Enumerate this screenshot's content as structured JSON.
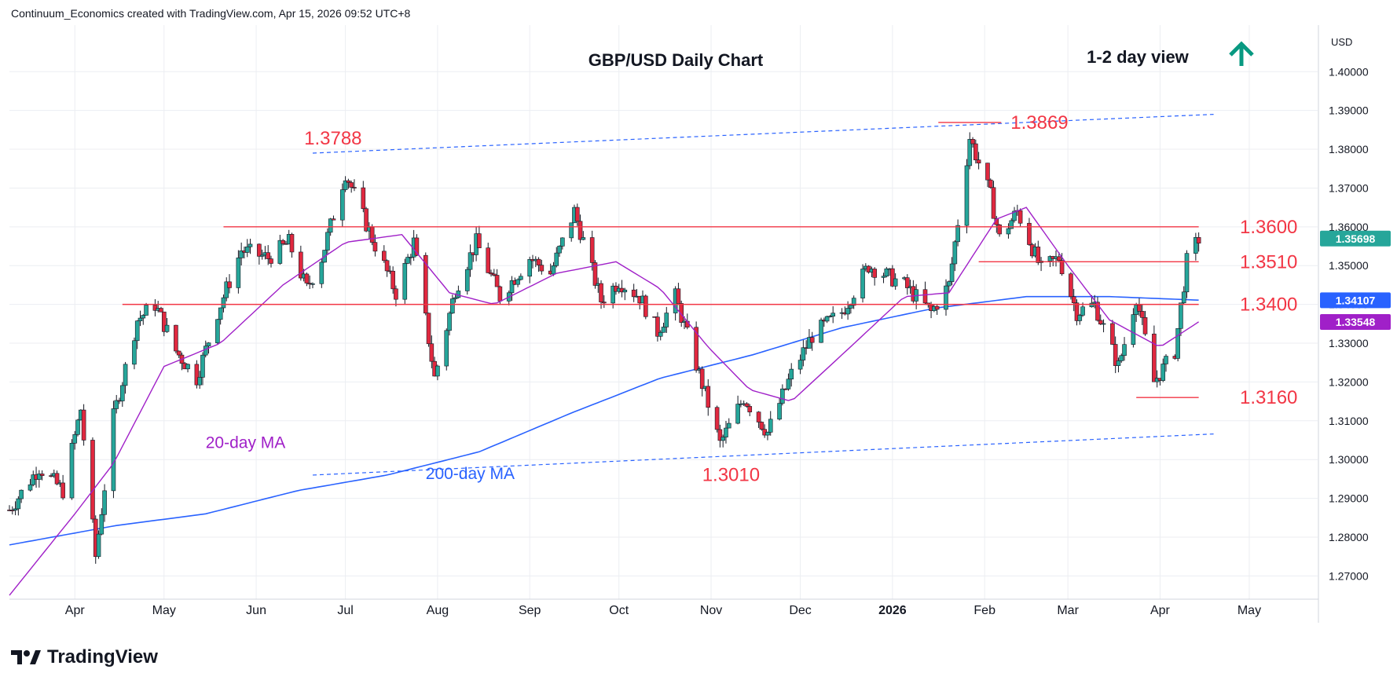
{
  "header": {
    "credit": "Continuum_Economics created with TradingView.com, Apr 15, 2026 09:52 UTC+8"
  },
  "footer": {
    "brand": "TradingView"
  },
  "colors": {
    "up": "#26a69a",
    "down": "#e0283f",
    "ma20": "#a020c8",
    "ma200": "#2962ff",
    "level": "#f23645",
    "trend": "#2962ff",
    "arrow": "#089981",
    "grid": "#eceef2"
  },
  "chart_data": {
    "type": "candlestick",
    "title": "GBP/USD Daily Chart",
    "view_label": "1-2 day view",
    "view_icon": "arrow-up-icon",
    "currency": "USD",
    "ylim": [
      1.264,
      1.412
    ],
    "y_ticks": [
      "1.40000",
      "1.39000",
      "1.38000",
      "1.37000",
      "1.36000",
      "1.35000",
      "1.34000",
      "1.33000",
      "1.32000",
      "1.31000",
      "1.30000",
      "1.29000",
      "1.28000",
      "1.27000"
    ],
    "x_ticks": [
      {
        "label": "Apr",
        "date": "2025-04-01"
      },
      {
        "label": "May",
        "date": "2025-05-01"
      },
      {
        "label": "Jun",
        "date": "2025-06-01"
      },
      {
        "label": "Jul",
        "date": "2025-07-01"
      },
      {
        "label": "Aug",
        "date": "2025-08-01"
      },
      {
        "label": "Sep",
        "date": "2025-09-01"
      },
      {
        "label": "Oct",
        "date": "2025-10-01"
      },
      {
        "label": "Nov",
        "date": "2025-11-01"
      },
      {
        "label": "Dec",
        "date": "2025-12-01"
      },
      {
        "label": "2026",
        "date": "2026-01-01"
      },
      {
        "label": "Feb",
        "date": "2026-02-01"
      },
      {
        "label": "Mar",
        "date": "2026-03-01"
      },
      {
        "label": "Apr",
        "date": "2026-04-01"
      },
      {
        "label": "May",
        "date": "2026-05-01"
      }
    ],
    "price_tags": [
      {
        "value": 1.35698,
        "label": "1.35698",
        "color": "#26a69a"
      },
      {
        "value": 1.34107,
        "label": "1.34107",
        "color": "#2962ff"
      },
      {
        "value": 1.33548,
        "label": "1.33548",
        "color": "#a020c8"
      }
    ],
    "levels": [
      {
        "value": 1.36,
        "label": "1.3600",
        "from": "2025-05-21",
        "to": "2026-04-14"
      },
      {
        "value": 1.351,
        "label": "1.3510",
        "from": "2026-01-30",
        "to": "2026-04-14"
      },
      {
        "value": 1.34,
        "label": "1.3400",
        "from": "2025-04-17",
        "to": "2026-04-14"
      },
      {
        "value": 1.316,
        "label": "1.3160",
        "from": "2026-03-24",
        "to": "2026-04-14"
      }
    ],
    "peak_markers": [
      {
        "value": 1.3869,
        "label": "1.3869",
        "date": "2026-01-27"
      },
      {
        "value": 1.3788,
        "label": "1.3788",
        "date": "2025-06-30"
      },
      {
        "value": 1.301,
        "label": "1.3010",
        "date": "2025-11-04"
      }
    ],
    "trendlines": [
      {
        "from": {
          "date": "2025-06-20",
          "value": 1.379
        },
        "to": {
          "date": "2026-04-19",
          "value": 1.389
        }
      },
      {
        "from": {
          "date": "2025-06-20",
          "value": 1.296
        },
        "to": {
          "date": "2026-04-19",
          "value": 1.3066
        }
      }
    ],
    "annotations": [
      {
        "text": "20-day MA",
        "date": "2025-05-15",
        "value": 1.303,
        "color": "#a020c8"
      },
      {
        "text": "200-day MA",
        "date": "2025-07-28",
        "value": 1.295,
        "color": "#2962ff"
      }
    ],
    "ohlc_anchors": [
      [
        "2025-03-10",
        1.287
      ],
      [
        "2025-03-20",
        1.298
      ],
      [
        "2025-03-28",
        1.292
      ],
      [
        "2025-04-03",
        1.313
      ],
      [
        "2025-04-08",
        1.275
      ],
      [
        "2025-04-14",
        1.311
      ],
      [
        "2025-04-22",
        1.336
      ],
      [
        "2025-04-28",
        1.34
      ],
      [
        "2025-05-05",
        1.328
      ],
      [
        "2025-05-12",
        1.321
      ],
      [
        "2025-05-19",
        1.338
      ],
      [
        "2025-05-27",
        1.354
      ],
      [
        "2025-06-05",
        1.352
      ],
      [
        "2025-06-12",
        1.356
      ],
      [
        "2025-06-18",
        1.344
      ],
      [
        "2025-06-23",
        1.352
      ],
      [
        "2025-07-01",
        1.374
      ],
      [
        "2025-07-10",
        1.357
      ],
      [
        "2025-07-18",
        1.343
      ],
      [
        "2025-07-24",
        1.356
      ],
      [
        "2025-07-31",
        1.321
      ],
      [
        "2025-08-07",
        1.344
      ],
      [
        "2025-08-14",
        1.356
      ],
      [
        "2025-08-22",
        1.342
      ],
      [
        "2025-09-01",
        1.352
      ],
      [
        "2025-09-08",
        1.348
      ],
      [
        "2025-09-16",
        1.364
      ],
      [
        "2025-09-25",
        1.341
      ],
      [
        "2025-10-01",
        1.346
      ],
      [
        "2025-10-08",
        1.342
      ],
      [
        "2025-10-14",
        1.333
      ],
      [
        "2025-10-20",
        1.342
      ],
      [
        "2025-10-28",
        1.322
      ],
      [
        "2025-11-04",
        1.304
      ],
      [
        "2025-11-12",
        1.316
      ],
      [
        "2025-11-20",
        1.307
      ],
      [
        "2025-11-28",
        1.322
      ],
      [
        "2025-12-05",
        1.332
      ],
      [
        "2025-12-15",
        1.338
      ],
      [
        "2025-12-24",
        1.35
      ],
      [
        "2026-01-05",
        1.345
      ],
      [
        "2026-01-14",
        1.338
      ],
      [
        "2026-01-20",
        1.345
      ],
      [
        "2026-01-27",
        1.383
      ],
      [
        "2026-02-03",
        1.368
      ],
      [
        "2026-02-06",
        1.357
      ],
      [
        "2026-02-12",
        1.364
      ],
      [
        "2026-02-20",
        1.349
      ],
      [
        "2026-02-26",
        1.352
      ],
      [
        "2026-03-04",
        1.338
      ],
      [
        "2026-03-10",
        1.34
      ],
      [
        "2026-03-18",
        1.324
      ],
      [
        "2026-03-24",
        1.342
      ],
      [
        "2026-03-30",
        1.32
      ],
      [
        "2026-04-06",
        1.328
      ],
      [
        "2026-04-10",
        1.351
      ],
      [
        "2026-04-14",
        1.3569
      ]
    ],
    "ma20_anchors": [
      [
        "2025-03-10",
        1.265
      ],
      [
        "2025-04-01",
        1.286
      ],
      [
        "2025-04-14",
        1.299
      ],
      [
        "2025-05-01",
        1.324
      ],
      [
        "2025-05-20",
        1.33
      ],
      [
        "2025-06-10",
        1.345
      ],
      [
        "2025-07-01",
        1.356
      ],
      [
        "2025-07-20",
        1.358
      ],
      [
        "2025-08-05",
        1.343
      ],
      [
        "2025-08-20",
        1.34
      ],
      [
        "2025-09-10",
        1.348
      ],
      [
        "2025-09-30",
        1.351
      ],
      [
        "2025-10-15",
        1.344
      ],
      [
        "2025-10-31",
        1.329
      ],
      [
        "2025-11-14",
        1.318
      ],
      [
        "2025-11-28",
        1.315
      ],
      [
        "2025-12-15",
        1.327
      ],
      [
        "2026-01-05",
        1.342
      ],
      [
        "2026-01-20",
        1.343
      ],
      [
        "2026-02-05",
        1.362
      ],
      [
        "2026-02-15",
        1.365
      ],
      [
        "2026-03-01",
        1.35
      ],
      [
        "2026-03-15",
        1.336
      ],
      [
        "2026-04-01",
        1.329
      ],
      [
        "2026-04-14",
        1.3355
      ]
    ],
    "ma200_anchors": [
      [
        "2025-03-10",
        1.278
      ],
      [
        "2025-04-15",
        1.283
      ],
      [
        "2025-05-15",
        1.286
      ],
      [
        "2025-06-15",
        1.292
      ],
      [
        "2025-07-15",
        1.296
      ],
      [
        "2025-08-15",
        1.302
      ],
      [
        "2025-09-15",
        1.312
      ],
      [
        "2025-10-15",
        1.321
      ],
      [
        "2025-11-15",
        1.327
      ],
      [
        "2025-12-15",
        1.334
      ],
      [
        "2026-01-15",
        1.339
      ],
      [
        "2026-02-15",
        1.342
      ],
      [
        "2026-03-15",
        1.342
      ],
      [
        "2026-04-14",
        1.3411
      ]
    ]
  }
}
